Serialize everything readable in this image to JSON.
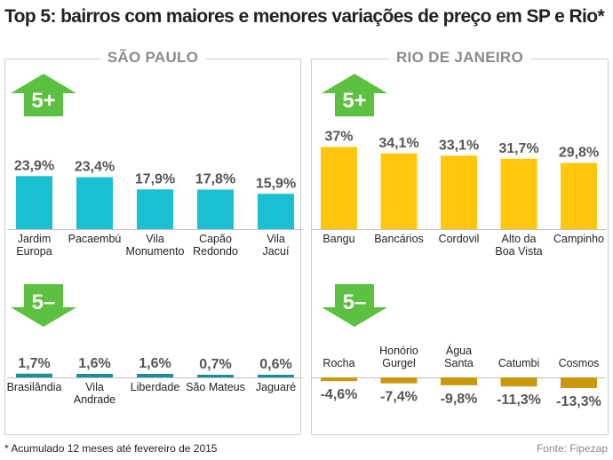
{
  "title": "Top 5: bairros com maiores e menores variações de preço em SP e Rio*",
  "footnote": "* Acumulado 12 meses até fevereiro de 2015",
  "source": "Fonte: Fipezap",
  "colors": {
    "sp_bar": "#1bbfd2",
    "sp_bar_low": "#1a8e99",
    "rio_bar": "#fec70b",
    "rio_bar_neg": "#c9980c",
    "arrow": "#5cc040",
    "label_gray": "#555555"
  },
  "arrow_up_label": "5+",
  "arrow_down_label": "5–",
  "chart_data": [
    {
      "type": "bar",
      "panel": "SÃO PAULO",
      "group": "5+",
      "categories": [
        "Jardim Europa",
        "Pacaembú",
        "Vila Monumento",
        "Capão Redondo",
        "Vila Jacuí"
      ],
      "category_lines": [
        [
          "Jardim",
          "Europa"
        ],
        [
          "Pacaembú"
        ],
        [
          "Vila",
          "Monumento"
        ],
        [
          "Capão",
          "Redondo"
        ],
        [
          "Vila",
          "Jacuí"
        ]
      ],
      "values": [
        23.9,
        23.4,
        17.9,
        17.8,
        15.9
      ],
      "labels": [
        "23,9%",
        "23,4%",
        "17,9%",
        "17,8%",
        "15,9%"
      ]
    },
    {
      "type": "bar",
      "panel": "SÃO PAULO",
      "group": "5–",
      "categories": [
        "Brasilândia",
        "Vila Andrade",
        "Liberdade",
        "São Mateus",
        "Jaguaré"
      ],
      "category_lines": [
        [
          "Brasilândia"
        ],
        [
          "Vila",
          "Andrade"
        ],
        [
          "Liberdade"
        ],
        [
          "São Mateus"
        ],
        [
          "Jaguaré"
        ]
      ],
      "values": [
        1.7,
        1.6,
        1.6,
        0.7,
        0.6
      ],
      "labels": [
        "1,7%",
        "1,6%",
        "1,6%",
        "0,7%",
        "0,6%"
      ]
    },
    {
      "type": "bar",
      "panel": "RIO DE JANEIRO",
      "group": "5+",
      "categories": [
        "Bangu",
        "Bancários",
        "Cordovil",
        "Alto da Boa Vista",
        "Campinho"
      ],
      "category_lines": [
        [
          "Bangu"
        ],
        [
          "Bancários"
        ],
        [
          "Cordovil"
        ],
        [
          "Alto da",
          "Boa Vista"
        ],
        [
          "Campinho"
        ]
      ],
      "values": [
        37,
        34.1,
        33.1,
        31.7,
        29.8
      ],
      "labels": [
        "37%",
        "34,1%",
        "33,1%",
        "31,7%",
        "29,8%"
      ]
    },
    {
      "type": "bar",
      "panel": "RIO DE JANEIRO",
      "group": "5–",
      "categories": [
        "Rocha",
        "Honório Gurgel",
        "Água Santa",
        "Catumbi",
        "Cosmos"
      ],
      "category_lines": [
        [
          "Rocha"
        ],
        [
          "Honório",
          "Gurgel"
        ],
        [
          "Água",
          "Santa"
        ],
        [
          "Catumbi"
        ],
        [
          "Cosmos"
        ]
      ],
      "values": [
        -4.6,
        -7.4,
        -9.8,
        -11.3,
        -13.3
      ],
      "labels": [
        "-4,6%",
        "-7,4%",
        "-9,8%",
        "-11,3%",
        "-13,3%"
      ]
    }
  ]
}
